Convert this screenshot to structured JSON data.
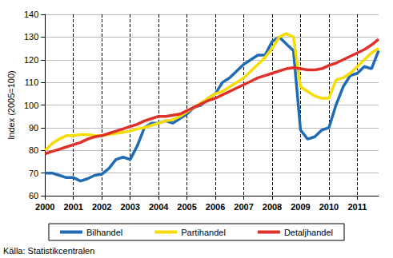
{
  "chart_data": {
    "type": "line",
    "y_label": "Index (2005=100)",
    "annotation": "Källa: Statistikcentralen",
    "categories": [
      "2000",
      null,
      null,
      null,
      "2001",
      null,
      null,
      null,
      "2002",
      null,
      null,
      null,
      "2003",
      null,
      null,
      null,
      "2004",
      null,
      null,
      null,
      "2005",
      null,
      null,
      null,
      "2006",
      null,
      null,
      null,
      "2007",
      null,
      null,
      null,
      "2008",
      null,
      null,
      null,
      "2009",
      null,
      null,
      null,
      "2010",
      null,
      null,
      null,
      "2011",
      null,
      null,
      null
    ],
    "series": [
      {
        "name": "Bilhandel",
        "color": "#1f6cb4",
        "values": [
          70,
          70,
          69,
          68,
          68,
          66.5,
          67.5,
          69,
          69.5,
          72,
          76,
          77,
          76,
          82,
          90,
          92,
          92,
          93,
          92,
          94,
          96,
          99,
          100,
          103,
          105,
          110,
          112,
          115,
          118,
          120,
          122,
          122,
          128,
          130,
          127,
          124,
          89,
          85,
          86,
          89,
          90,
          100,
          108,
          113,
          114,
          117,
          116,
          124
        ]
      },
      {
        "name": "Partihandel",
        "color": "#f7dc00",
        "values": [
          80,
          83,
          85,
          86.5,
          86.5,
          87,
          87,
          86.5,
          86.5,
          87,
          87.5,
          88,
          88.5,
          89.5,
          90,
          91,
          92,
          93,
          93.5,
          95,
          97,
          99,
          101,
          103,
          105,
          106,
          108,
          110,
          112,
          115,
          118,
          121,
          125,
          130,
          131.5,
          130,
          108,
          106,
          104,
          103,
          103,
          111,
          112,
          114,
          117,
          120,
          123,
          125
        ]
      },
      {
        "name": "Detaljhandel",
        "color": "#e0302a",
        "values": [
          78.5,
          79.5,
          80.5,
          81.5,
          82.5,
          83.5,
          85,
          86,
          86.5,
          87.5,
          88.5,
          89.5,
          90.5,
          91.5,
          93,
          94,
          95,
          95,
          95.5,
          96,
          97.5,
          99,
          100.5,
          102,
          103,
          104.5,
          106,
          107.5,
          109,
          110.5,
          112,
          113,
          114,
          115,
          116,
          116.5,
          116,
          115.5,
          115.5,
          116,
          117.5,
          118.5,
          120,
          121.5,
          123,
          124.5,
          126.5,
          129
        ]
      }
    ],
    "ylim": [
      60,
      140
    ],
    "yticks": [
      60,
      70,
      80,
      90,
      100,
      110,
      120,
      130,
      140
    ],
    "grid": true,
    "legend": "bottom"
  }
}
